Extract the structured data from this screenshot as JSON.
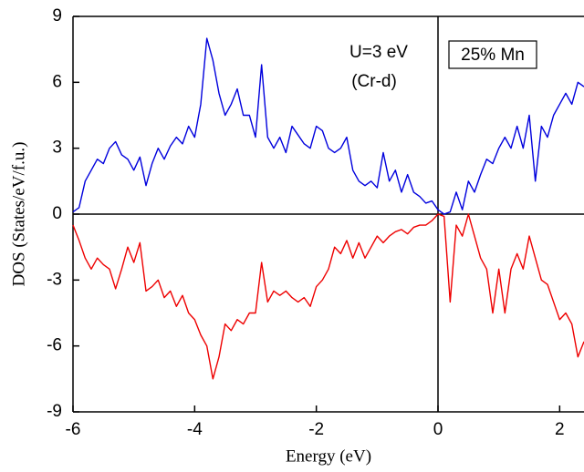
{
  "chart_data": {
    "type": "line",
    "xlabel": "Energy (eV)",
    "ylabel": "DOS (States/eV/f.u.)",
    "annotations": [
      "U=3 eV",
      "(Cr-d)",
      "25% Mn"
    ],
    "xlim": [
      -6,
      2.4
    ],
    "xticks": [
      -6,
      -4,
      -2,
      0,
      2
    ],
    "ylim": [
      -9,
      9
    ],
    "yticks": [
      -9,
      -6,
      -3,
      0,
      3,
      6,
      9
    ],
    "x": [
      -6,
      -5.9,
      -5.8,
      -5.7,
      -5.6,
      -5.5,
      -5.4,
      -5.3,
      -5.2,
      -5.1,
      -5,
      -4.9,
      -4.8,
      -4.7,
      -4.6,
      -4.5,
      -4.4,
      -4.3,
      -4.2,
      -4.1,
      -4,
      -3.9,
      -3.8,
      -3.7,
      -3.6,
      -3.5,
      -3.4,
      -3.3,
      -3.2,
      -3.1,
      -3,
      -2.9,
      -2.8,
      -2.7,
      -2.6,
      -2.5,
      -2.4,
      -2.3,
      -2.2,
      -2.1,
      -2,
      -1.9,
      -1.8,
      -1.7,
      -1.6,
      -1.5,
      -1.4,
      -1.3,
      -1.2,
      -1.1,
      -1,
      -0.9,
      -0.8,
      -0.7,
      -0.6,
      -0.5,
      -0.4,
      -0.3,
      -0.2,
      -0.1,
      0,
      0.1,
      0.2,
      0.3,
      0.4,
      0.5,
      0.6,
      0.7,
      0.8,
      0.9,
      1,
      1.1,
      1.2,
      1.3,
      1.4,
      1.5,
      1.6,
      1.7,
      1.8,
      1.9,
      2,
      2.1,
      2.2,
      2.3,
      2.4
    ],
    "series": [
      {
        "color": "#0000dd",
        "values": [
          0.1,
          0.3,
          1.5,
          2.0,
          2.5,
          2.3,
          3.0,
          3.3,
          2.7,
          2.5,
          2.0,
          2.6,
          1.3,
          2.3,
          3.0,
          2.5,
          3.1,
          3.5,
          3.2,
          4.0,
          3.5,
          5.0,
          8.0,
          7.0,
          5.5,
          4.5,
          5.0,
          5.7,
          4.5,
          4.5,
          3.5,
          6.8,
          3.5,
          3.0,
          3.5,
          2.8,
          4.0,
          3.6,
          3.2,
          3.0,
          4.0,
          3.8,
          3.0,
          2.8,
          3.0,
          3.5,
          2.0,
          1.5,
          1.3,
          1.5,
          1.2,
          2.8,
          1.5,
          2.0,
          1.0,
          1.8,
          1.0,
          0.8,
          0.5,
          0.6,
          0.2,
          0,
          0.1,
          1.0,
          0.2,
          1.5,
          1.0,
          1.8,
          2.5,
          2.3,
          3.0,
          3.5,
          3.0,
          4.0,
          3.0,
          4.5,
          1.5,
          4.0,
          3.5,
          4.5,
          5.0,
          5.5,
          5.0,
          6.0,
          5.8
        ]
      },
      {
        "color": "#ee0000",
        "values": [
          -0.5,
          -1.2,
          -2.0,
          -2.5,
          -2.0,
          -2.3,
          -2.5,
          -3.4,
          -2.5,
          -1.5,
          -2.2,
          -1.3,
          -3.5,
          -3.3,
          -3.0,
          -3.8,
          -3.5,
          -4.2,
          -3.7,
          -4.5,
          -4.8,
          -5.5,
          -6.0,
          -7.5,
          -6.5,
          -5.0,
          -5.3,
          -4.8,
          -5.0,
          -4.5,
          -4.5,
          -2.2,
          -4.0,
          -3.5,
          -3.7,
          -3.5,
          -3.8,
          -4.0,
          -3.8,
          -4.2,
          -3.3,
          -3.0,
          -2.5,
          -1.5,
          -1.8,
          -1.2,
          -2.0,
          -1.3,
          -2.0,
          -1.5,
          -1.0,
          -1.3,
          -1.0,
          -0.8,
          -0.7,
          -0.9,
          -0.6,
          -0.5,
          -0.5,
          -0.3,
          0,
          -0.1,
          -4.0,
          -0.5,
          -1.0,
          0,
          -1.0,
          -2.0,
          -2.5,
          -4.5,
          -2.5,
          -4.5,
          -2.5,
          -1.8,
          -2.5,
          -1.0,
          -2.0,
          -3.0,
          -3.2,
          -4.0,
          -4.8,
          -4.5,
          -5.0,
          -6.5,
          -5.8
        ]
      }
    ]
  }
}
